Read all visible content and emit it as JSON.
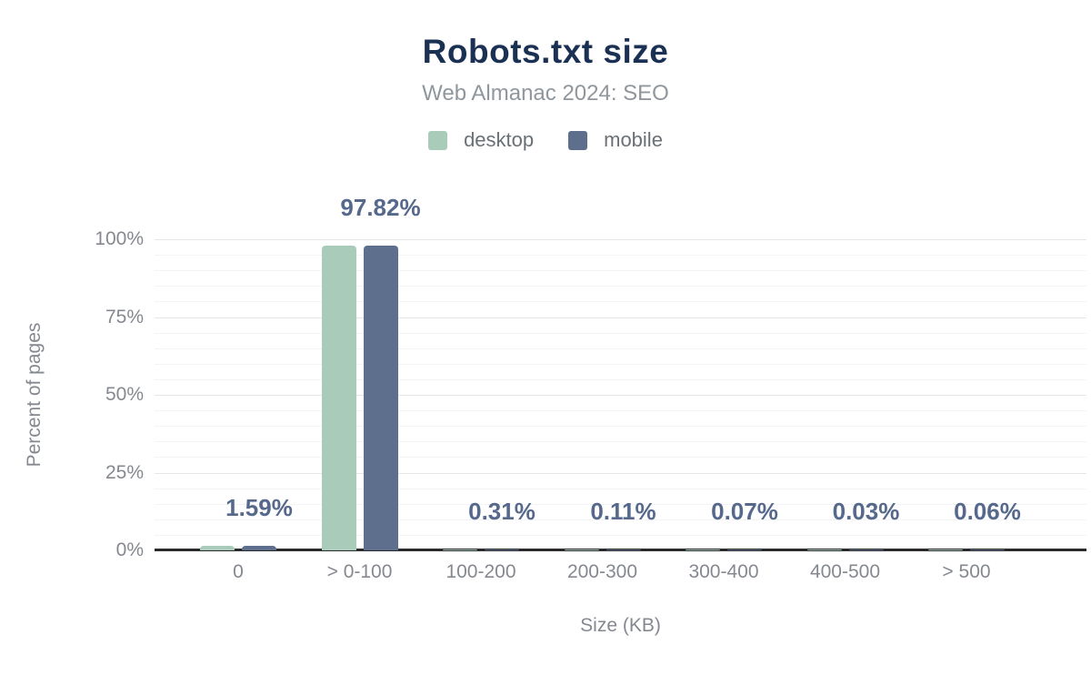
{
  "header": {
    "title": "Robots.txt size",
    "subtitle": "Web Almanac 2024: SEO"
  },
  "legend": {
    "items": [
      {
        "id": "desktop",
        "label": "desktop",
        "color": "#a9cbba"
      },
      {
        "id": "mobile",
        "label": "mobile",
        "color": "#5e6f8d"
      }
    ]
  },
  "chart_data": {
    "type": "bar",
    "title": "Robots.txt size",
    "subtitle": "Web Almanac 2024: SEO",
    "categories": [
      "0",
      "> 0-100",
      "100-200",
      "200-300",
      "300-400",
      "400-500",
      "> 500"
    ],
    "series": [
      {
        "name": "desktop",
        "color": "#a9cbba",
        "values": [
          1.59,
          97.82,
          0.31,
          0.11,
          0.07,
          0.03,
          0.06
        ]
      },
      {
        "name": "mobile",
        "color": "#5e6f8d",
        "values": [
          1.59,
          97.82,
          0.31,
          0.11,
          0.07,
          0.03,
          0.06
        ]
      }
    ],
    "data_labels": [
      "1.59%",
      "97.82%",
      "0.31%",
      "0.11%",
      "0.07%",
      "0.03%",
      "0.06%"
    ],
    "xlabel": "Size (KB)",
    "ylabel": "Percent of pages",
    "ylim": [
      0,
      100
    ],
    "yticks": [
      {
        "value": 0,
        "label": "0%"
      },
      {
        "value": 25,
        "label": "25%"
      },
      {
        "value": 50,
        "label": "50%"
      },
      {
        "value": 75,
        "label": "75%"
      },
      {
        "value": 100,
        "label": "100%"
      }
    ],
    "grid": {
      "major_step": 25,
      "minor_step": 5
    },
    "legend_position": "top",
    "colors": {
      "title": "#1a3154",
      "subtitle": "#8f969c",
      "tick": "#85898f",
      "data_label": "#56698c",
      "axis_line": "#2a2a2a",
      "grid_major": "#e4e6e8",
      "grid_minor": "#f3f4f5"
    }
  }
}
